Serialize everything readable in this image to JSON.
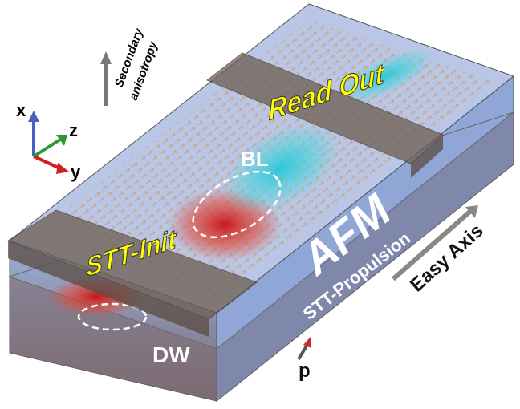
{
  "axes": {
    "x": "x",
    "y": "y",
    "z": "z"
  },
  "secondary_anisotropy": [
    "Secondary",
    "anisotropy"
  ],
  "electrodes": {
    "read_out": "Read Out",
    "stt_init": "STT-Init"
  },
  "labels": {
    "bl": "BL",
    "dw": "DW",
    "afm": "AFM",
    "propulsion": "STT-Propulsion",
    "easy_axis": "Easy Axis",
    "p": "p"
  }
}
